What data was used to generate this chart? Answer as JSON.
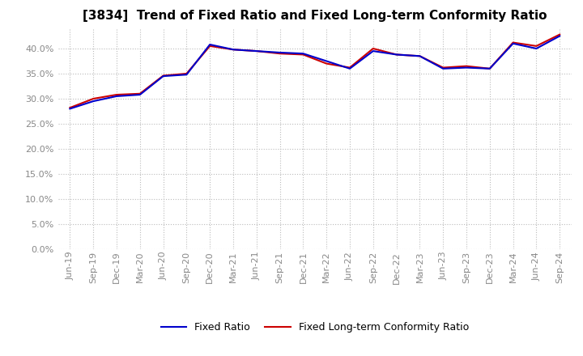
{
  "title": "[3834]  Trend of Fixed Ratio and Fixed Long-term Conformity Ratio",
  "x_labels": [
    "Jun-19",
    "Sep-19",
    "Dec-19",
    "Mar-20",
    "Jun-20",
    "Sep-20",
    "Dec-20",
    "Mar-21",
    "Jun-21",
    "Sep-21",
    "Dec-21",
    "Mar-22",
    "Jun-22",
    "Sep-22",
    "Dec-22",
    "Mar-23",
    "Jun-23",
    "Sep-23",
    "Dec-23",
    "Mar-24",
    "Jun-24",
    "Sep-24"
  ],
  "fixed_ratio": [
    28.0,
    29.5,
    30.5,
    30.8,
    34.5,
    34.8,
    40.8,
    39.8,
    39.5,
    39.2,
    39.0,
    37.5,
    36.0,
    39.5,
    38.8,
    38.5,
    36.0,
    36.2,
    36.0,
    41.0,
    40.0,
    42.5
  ],
  "fixed_lt_ratio": [
    28.2,
    30.0,
    30.8,
    31.0,
    34.6,
    35.0,
    40.5,
    39.8,
    39.5,
    39.0,
    38.8,
    37.0,
    36.2,
    40.0,
    38.8,
    38.5,
    36.2,
    36.5,
    36.0,
    41.2,
    40.5,
    42.8
  ],
  "fixed_ratio_color": "#0000cc",
  "fixed_lt_ratio_color": "#cc0000",
  "ylim": [
    0,
    44
  ],
  "yticks": [
    0,
    5,
    10,
    15,
    20,
    25,
    30,
    35,
    40
  ],
  "background_color": "#ffffff",
  "plot_bg_color": "#ffffff",
  "grid_color": "#bbbbbb",
  "tick_color": "#888888",
  "legend_fixed": "Fixed Ratio",
  "legend_lt": "Fixed Long-term Conformity Ratio",
  "title_fontsize": 11,
  "tick_fontsize": 8,
  "legend_fontsize": 9
}
